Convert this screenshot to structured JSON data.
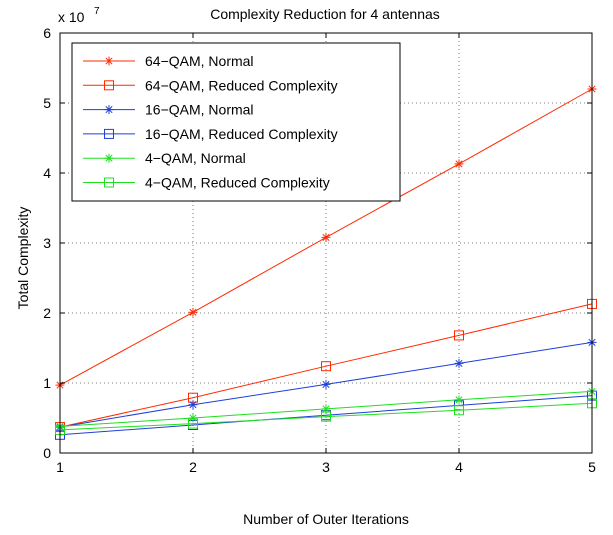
{
  "chart_data": {
    "type": "line",
    "title": "Complexity Reduction for 4 antennas",
    "xlabel": "Number of Outer Iterations",
    "ylabel": "Total Complexity",
    "y_exponent_base": "x 10",
    "y_exponent_power": "7",
    "x": [
      1,
      2,
      3,
      4,
      5
    ],
    "xlim": [
      1,
      5
    ],
    "ylim": [
      0,
      6
    ],
    "xticks": [
      "1",
      "2",
      "3",
      "4",
      "5"
    ],
    "yticks": [
      "0",
      "1",
      "2",
      "3",
      "4",
      "5",
      "6"
    ],
    "grid": true,
    "legend_position": "top-left",
    "series": [
      {
        "name": "64−QAM, Normal",
        "color": "#ff2a00",
        "marker": "star",
        "values": [
          0.97,
          2.01,
          3.08,
          4.13,
          5.2
        ]
      },
      {
        "name": "64−QAM, Reduced Complexity",
        "color": "#ff2a00",
        "marker": "square",
        "values": [
          0.37,
          0.79,
          1.24,
          1.68,
          2.13
        ]
      },
      {
        "name": "16−QAM, Normal",
        "color": "#1f3fd8",
        "marker": "star",
        "values": [
          0.37,
          0.69,
          0.98,
          1.28,
          1.58
        ]
      },
      {
        "name": "16−QAM, Reduced Complexity",
        "color": "#1f3fd8",
        "marker": "square",
        "values": [
          0.26,
          0.4,
          0.54,
          0.68,
          0.82
        ]
      },
      {
        "name": "4−QAM, Normal",
        "color": "#1ee01e",
        "marker": "star",
        "values": [
          0.38,
          0.5,
          0.63,
          0.76,
          0.88
        ]
      },
      {
        "name": "4−QAM, Reduced Complexity",
        "color": "#1ee01e",
        "marker": "square",
        "values": [
          0.33,
          0.42,
          0.52,
          0.61,
          0.71
        ]
      }
    ]
  }
}
